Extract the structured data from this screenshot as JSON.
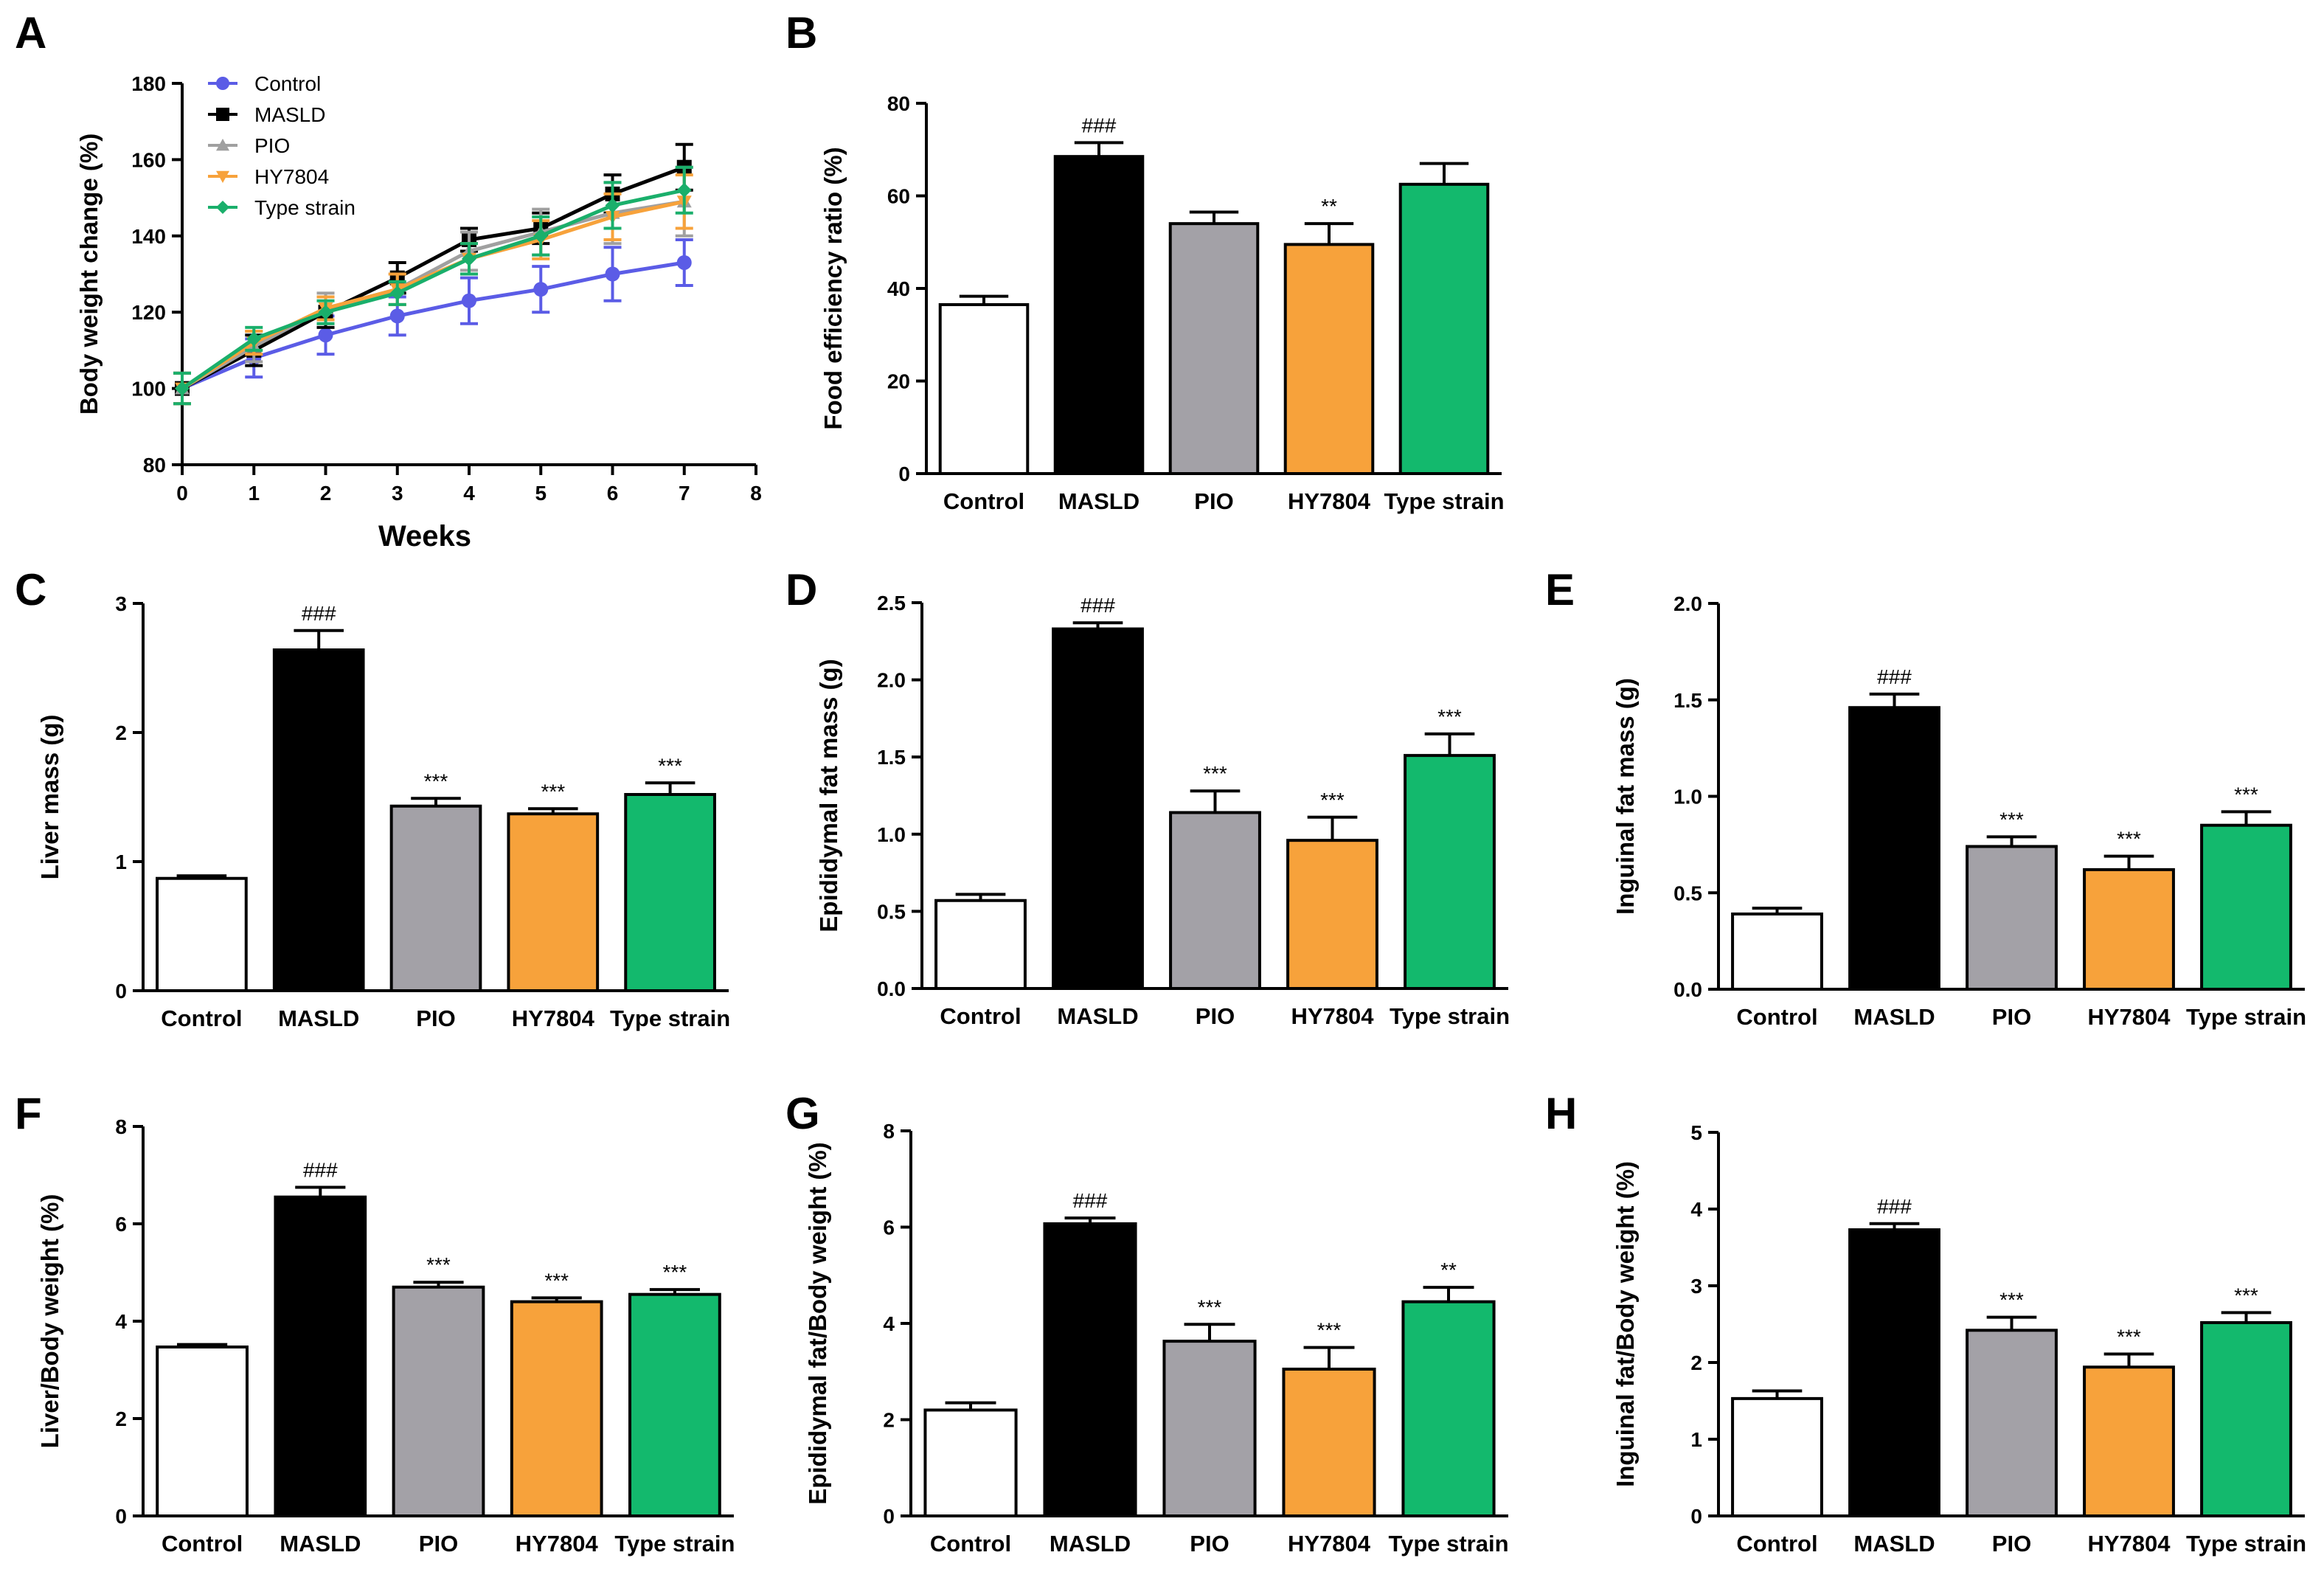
{
  "chart_data": [
    {
      "panel": "A",
      "type": "line",
      "xlabel": "Weeks",
      "ylabel": "Body weight change (%)",
      "xlim": [
        0,
        8
      ],
      "ylim": [
        80,
        180
      ],
      "x_ticks": [
        0,
        1,
        2,
        3,
        4,
        5,
        6,
        7,
        8
      ],
      "y_ticks": [
        80,
        100,
        120,
        140,
        160,
        180
      ],
      "x": [
        0,
        1,
        2,
        3,
        4,
        5,
        6,
        7
      ],
      "series": [
        {
          "name": "Control",
          "color": "#5b5ce6",
          "marker": "circle",
          "values": [
            100,
            108,
            114,
            119,
            123,
            126,
            130,
            133
          ],
          "errors": [
            4,
            5,
            5,
            5,
            6,
            6,
            7,
            6
          ]
        },
        {
          "name": "MASLD",
          "color": "#000000",
          "marker": "square",
          "values": [
            100,
            110,
            120,
            129,
            139,
            142,
            151,
            158
          ],
          "errors": [
            4,
            4,
            4,
            4,
            3,
            4,
            5,
            6
          ]
        },
        {
          "name": "PIO",
          "color": "#a0a0a0",
          "marker": "triangle",
          "values": [
            100,
            111,
            121,
            126,
            136,
            141,
            146,
            149
          ],
          "errors": [
            4,
            4,
            4,
            4,
            5,
            6,
            8,
            9
          ]
        },
        {
          "name": "HY7804",
          "color": "#f7a23b",
          "marker": "triangle-down",
          "values": [
            100,
            112,
            121,
            126,
            134,
            139,
            145,
            149
          ],
          "errors": [
            4,
            3,
            3,
            4,
            4,
            5,
            6,
            7
          ]
        },
        {
          "name": "Type strain",
          "color": "#1aaf6b",
          "marker": "diamond",
          "values": [
            100,
            113,
            120,
            125,
            134,
            140,
            148,
            152
          ],
          "errors": [
            4,
            3,
            3,
            3,
            4,
            5,
            6,
            6
          ]
        }
      ]
    },
    {
      "panel": "B",
      "type": "bar",
      "ylabel": "Food efficiency ratio (%)",
      "categories": [
        "Control",
        "MASLD",
        "PIO",
        "HY7804",
        "Type strain"
      ],
      "values": [
        36.5,
        68.5,
        54,
        49.5,
        62.5
      ],
      "errors": [
        1.8,
        3,
        2.5,
        4.5,
        4.5
      ],
      "annotations": [
        "",
        "###",
        "",
        "**",
        ""
      ],
      "ylim": [
        0,
        80
      ],
      "y_ticks": [
        0,
        20,
        40,
        60,
        80
      ],
      "y_tick_labels": [
        "0",
        "20",
        "40",
        "60",
        "80"
      ]
    },
    {
      "panel": "C",
      "type": "bar",
      "ylabel": "Liver mass (g)",
      "categories": [
        "Control",
        "MASLD",
        "PIO",
        "HY7804",
        "Type strain"
      ],
      "values": [
        0.87,
        2.64,
        1.43,
        1.37,
        1.52
      ],
      "errors": [
        0.02,
        0.15,
        0.06,
        0.04,
        0.09
      ],
      "annotations": [
        "",
        "###",
        "***",
        "***",
        "***"
      ],
      "ylim": [
        0,
        3
      ],
      "y_ticks": [
        0,
        1,
        2,
        3
      ],
      "y_tick_labels": [
        "0",
        "1",
        "2",
        "3"
      ]
    },
    {
      "panel": "D",
      "type": "bar",
      "ylabel": "Epididymal fat mass (g)",
      "categories": [
        "Control",
        "MASLD",
        "PIO",
        "HY7804",
        "Type strain"
      ],
      "values": [
        0.57,
        2.33,
        1.14,
        0.96,
        1.51
      ],
      "errors": [
        0.04,
        0.04,
        0.14,
        0.15,
        0.14
      ],
      "annotations": [
        "",
        "###",
        "***",
        "***",
        "***"
      ],
      "ylim": [
        0,
        2.5
      ],
      "y_ticks": [
        0,
        0.5,
        1.0,
        1.5,
        2.0,
        2.5
      ],
      "y_tick_labels": [
        "0.0",
        "0.5",
        "1.0",
        "1.5",
        "2.0",
        "2.5"
      ]
    },
    {
      "panel": "E",
      "type": "bar",
      "ylabel": "Inguinal fat mass (g)",
      "categories": [
        "Control",
        "MASLD",
        "PIO",
        "HY7804",
        "Type strain"
      ],
      "values": [
        0.39,
        1.46,
        0.74,
        0.62,
        0.85
      ],
      "errors": [
        0.03,
        0.07,
        0.05,
        0.07,
        0.07
      ],
      "annotations": [
        "",
        "###",
        "***",
        "***",
        "***"
      ],
      "ylim": [
        0,
        2.0
      ],
      "y_ticks": [
        0,
        0.5,
        1.0,
        1.5,
        2.0
      ],
      "y_tick_labels": [
        "0.0",
        "0.5",
        "1.0",
        "1.5",
        "2.0"
      ]
    },
    {
      "panel": "F",
      "type": "bar",
      "ylabel": "Liver/Body weight (%)",
      "categories": [
        "Control",
        "MASLD",
        "PIO",
        "HY7804",
        "Type strain"
      ],
      "values": [
        3.47,
        6.55,
        4.7,
        4.4,
        4.55
      ],
      "errors": [
        0.05,
        0.2,
        0.1,
        0.08,
        0.1
      ],
      "annotations": [
        "",
        "###",
        "***",
        "***",
        "***"
      ],
      "ylim": [
        0,
        8
      ],
      "y_ticks": [
        0,
        2,
        4,
        6,
        8
      ],
      "y_tick_labels": [
        "0",
        "2",
        "4",
        "6",
        "8"
      ]
    },
    {
      "panel": "G",
      "type": "bar",
      "ylabel": "Epididymal fat/Body weight (%)",
      "categories": [
        "Control",
        "MASLD",
        "PIO",
        "HY7804",
        "Type strain"
      ],
      "values": [
        2.2,
        6.07,
        3.63,
        3.05,
        4.45
      ],
      "errors": [
        0.15,
        0.12,
        0.35,
        0.45,
        0.3
      ],
      "annotations": [
        "",
        "###",
        "***",
        "***",
        "**"
      ],
      "ylim": [
        0,
        8
      ],
      "y_ticks": [
        0,
        2,
        4,
        6,
        8
      ],
      "y_tick_labels": [
        "0",
        "2",
        "4",
        "6",
        "8"
      ]
    },
    {
      "panel": "H",
      "type": "bar",
      "ylabel": "Inguinal fat/Body weight (%)",
      "categories": [
        "Control",
        "MASLD",
        "PIO",
        "HY7804",
        "Type strain"
      ],
      "values": [
        1.53,
        3.73,
        2.42,
        1.94,
        2.52
      ],
      "errors": [
        0.1,
        0.08,
        0.17,
        0.17,
        0.13
      ],
      "annotations": [
        "",
        "###",
        "***",
        "***",
        "***"
      ],
      "ylim": [
        0,
        5
      ],
      "y_ticks": [
        0,
        1,
        2,
        3,
        4,
        5
      ],
      "y_tick_labels": [
        "0",
        "1",
        "2",
        "3",
        "4",
        "5"
      ]
    }
  ],
  "bar_colors": [
    "#ffffff",
    "#000000",
    "#a3a1a7",
    "#f7a23b",
    "#13b96d"
  ]
}
